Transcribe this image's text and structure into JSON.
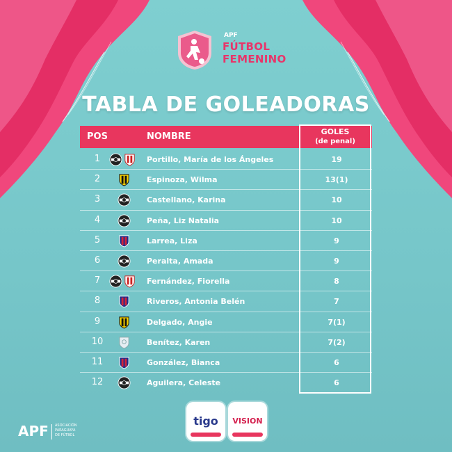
{
  "brand": {
    "apf": "APF",
    "line1": "FÚTBOL",
    "line2": "FEMENINO"
  },
  "title": "TABLA DE GOLEADORAS",
  "table": {
    "headers": {
      "pos": "POS",
      "nombre": "NOMBRE",
      "goles": "GOLES",
      "goles_sub": "(de penal)"
    },
    "rows": [
      {
        "pos": "1",
        "crest": "olimpia-crest + sol-de-america-crest",
        "name": "Portillo, María de los Ángeles",
        "goals": "19"
      },
      {
        "pos": "2",
        "crest": "guarani-crest",
        "name": "Espinoza, Wilma",
        "goals": "13(1)"
      },
      {
        "pos": "3",
        "crest": "olimpia-crest",
        "name": "Castellano, Karina",
        "goals": "10"
      },
      {
        "pos": "4",
        "crest": "olimpia-crest",
        "name": "Peña, Liz Natalia",
        "goals": "10"
      },
      {
        "pos": "5",
        "crest": "cerro-porteno-crest",
        "name": "Larrea, Liza",
        "goals": "9"
      },
      {
        "pos": "6",
        "crest": "olimpia-crest",
        "name": "Peralta, Amada",
        "goals": "9"
      },
      {
        "pos": "7",
        "crest": "olimpia-crest + sol-de-america-crest",
        "name": "Fernández, Fiorella",
        "goals": "8"
      },
      {
        "pos": "8",
        "crest": "cerro-porteno-crest",
        "name": "Riveros, Antonia Belén",
        "goals": "7"
      },
      {
        "pos": "9",
        "crest": "guarani-crest",
        "name": "Delgado, Angie",
        "goals": "7(1)"
      },
      {
        "pos": "10",
        "crest": "generic-club-crest",
        "name": "Benítez, Karen",
        "goals": "7(2)"
      },
      {
        "pos": "11",
        "crest": "cerro-porteno-crest",
        "name": "González, Bianca",
        "goals": "6"
      },
      {
        "pos": "12",
        "crest": "olimpia-crest",
        "name": "Aguilera, Celeste",
        "goals": "6"
      }
    ]
  },
  "footer": {
    "apf": "APF",
    "assoc_l1": "ASOCIACIÓN",
    "assoc_l2": "PARAGUAYA",
    "assoc_l3": "DE FÚTBOL",
    "sponsor1": "tigo",
    "sponsor2": "VISION"
  },
  "colors": {
    "background": "#7fcfd0",
    "accent_pink": "#e8365e",
    "white": "#ffffff"
  }
}
